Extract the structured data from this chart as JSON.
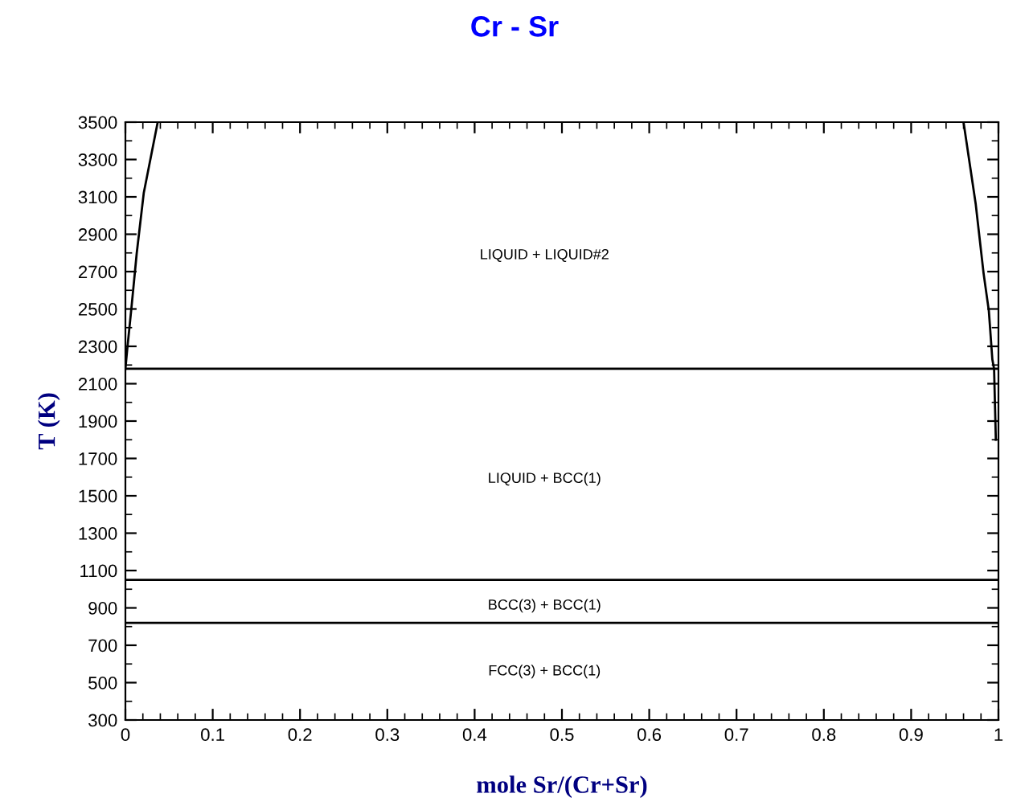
{
  "chart_data": {
    "type": "line",
    "title": "Cr - Sr",
    "xlabel": "mole Sr/(Cr+Sr)",
    "ylabel": "T (K)",
    "series": [
      {
        "color": "#000000",
        "x": [
          0.0,
          0.002,
          0.007,
          0.013,
          0.021,
          0.037
        ],
        "values": [
          2180,
          2280,
          2510,
          2800,
          3120,
          3500
        ]
      },
      {
        "color": "#000000",
        "x": [
          0.96,
          0.974,
          0.983,
          0.989,
          0.993,
          0.995,
          0.997
        ],
        "values": [
          3500,
          3060,
          2690,
          2490,
          2230,
          2180,
          1800
        ]
      },
      {
        "color": "#000000",
        "x": [
          0,
          1
        ],
        "values": [
          2180,
          2180
        ]
      },
      {
        "color": "#000000",
        "x": [
          0,
          1
        ],
        "values": [
          1050,
          1050
        ]
      },
      {
        "color": "#000000",
        "x": [
          0,
          1
        ],
        "values": [
          820,
          820
        ]
      }
    ],
    "annotations": [
      "LIQUID + LIQUID#2",
      "LIQUID + BCC(1)",
      "BCC(3) + BCC(1)",
      "FCC(3) + BCC(1)"
    ],
    "xlim": [
      0,
      1
    ],
    "xticks": [
      0,
      0.1,
      0.2,
      0.3,
      0.4,
      0.5,
      0.6,
      0.7,
      0.8,
      0.9,
      1
    ],
    "ylim": [
      300,
      3500
    ],
    "yticks": [
      300,
      500,
      700,
      900,
      1100,
      1300,
      1500,
      1700,
      1900,
      2100,
      2300,
      2500,
      2700,
      2900,
      3100,
      3300,
      3500
    ],
    "grid": false,
    "legend": false,
    "marker": "none",
    "line_style": "solid"
  }
}
